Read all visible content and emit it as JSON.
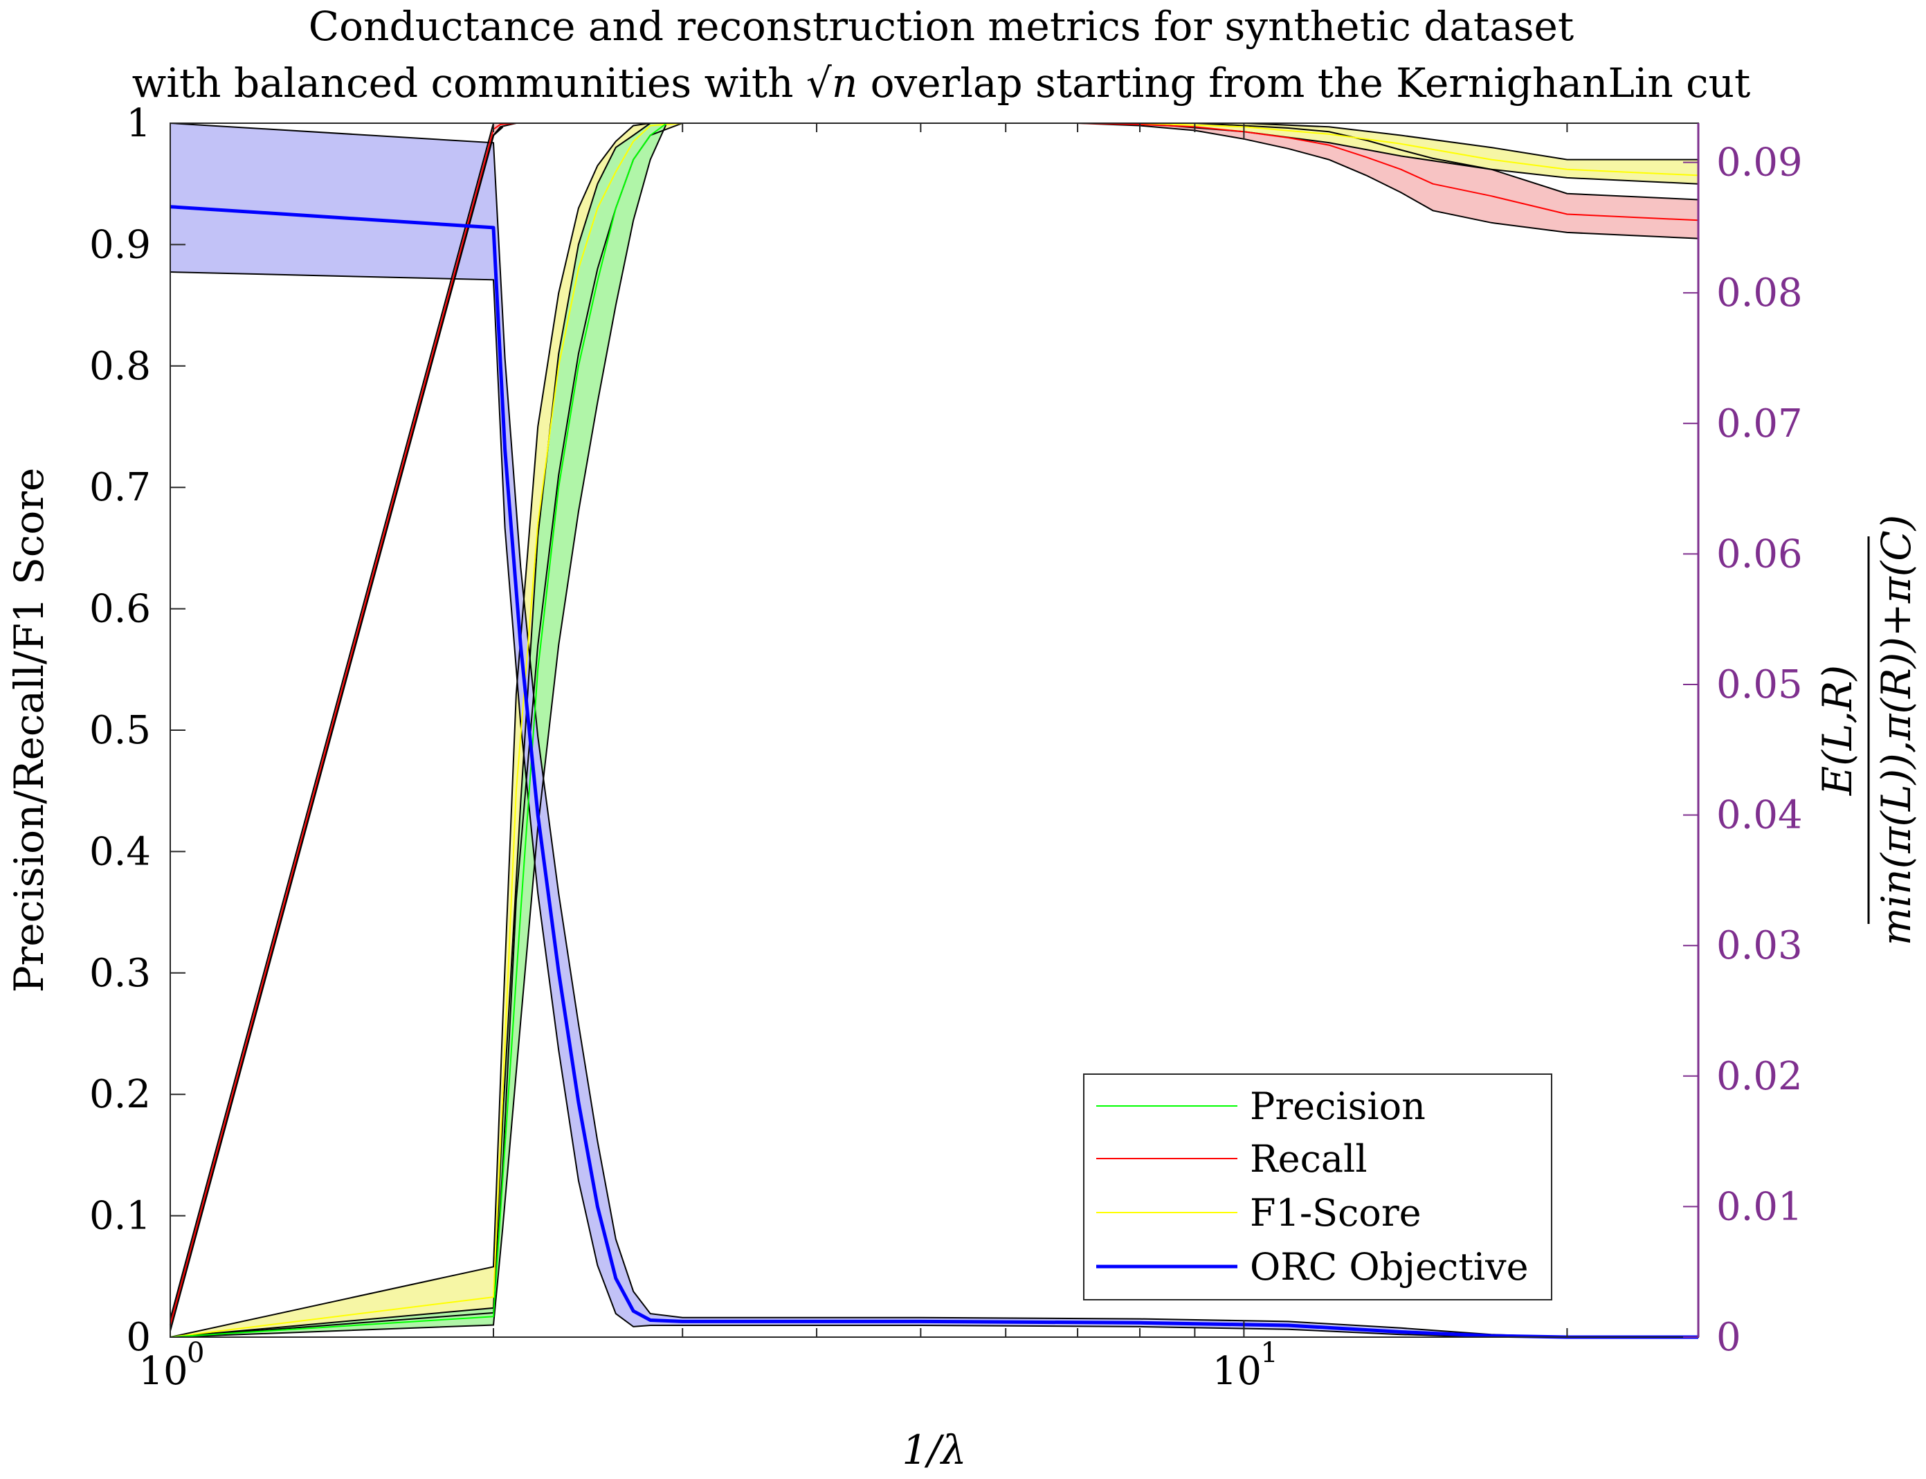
{
  "chart_data": {
    "type": "line",
    "title_lines": [
      "Conductance and reconstruction metrics for synthetic dataset",
      "with balanced communities with √n overlap starting from the KernighanLin cut"
    ],
    "title_math": "√n",
    "xlabel": "1/λ",
    "ylabel": "Precision/Recall/F1 Score",
    "y2label_numerator": "E(L,R)",
    "y2label_denominator": "min(π(L)),π(R))+π(C)",
    "x_scale": "log",
    "xlim": [
      1,
      26.5
    ],
    "ylim": [
      0,
      1
    ],
    "y2lim": [
      0,
      0.093
    ],
    "x_ticklabels": [
      {
        "value": 1,
        "base": "10",
        "exp": "0"
      },
      {
        "value": 10,
        "base": "10",
        "exp": "1"
      }
    ],
    "y_ticks": [
      0,
      0.1,
      0.2,
      0.3,
      0.4,
      0.5,
      0.6,
      0.7,
      0.8,
      0.9,
      1
    ],
    "y_ticklabels": [
      "0",
      "0.1",
      "0.2",
      "0.3",
      "0.4",
      "0.5",
      "0.6",
      "0.7",
      "0.8",
      "0.9",
      "1"
    ],
    "y2_ticks": [
      0,
      0.01,
      0.02,
      0.03,
      0.04,
      0.05,
      0.06,
      0.07,
      0.08,
      0.09
    ],
    "y2_ticklabels": [
      "0",
      "0.01",
      "0.02",
      "0.03",
      "0.04",
      "0.05",
      "0.06",
      "0.07",
      "0.08",
      "0.09"
    ],
    "y2_color": "#7e2f8e",
    "legend_position": "bottom-right",
    "grid": false,
    "series": [
      {
        "name": "Precision",
        "axis": "left",
        "color": "#00ff00",
        "fill": "#b0f5a8",
        "line_width": 2,
        "x": [
          1,
          2,
          2.04,
          2.12,
          2.2,
          2.3,
          2.4,
          2.5,
          2.6,
          2.7,
          2.8,
          2.9,
          3.0,
          3.5,
          4,
          5,
          6,
          7,
          8,
          9,
          10,
          11,
          13,
          15,
          20,
          26.5
        ],
        "y": [
          0,
          0.017,
          0.13,
          0.35,
          0.55,
          0.7,
          0.8,
          0.87,
          0.93,
          0.97,
          0.99,
          1,
          1,
          1,
          1,
          1,
          1,
          1,
          1,
          1,
          1,
          1,
          1,
          1,
          1,
          1
        ],
        "lower": [
          0,
          0.01,
          0.09,
          0.26,
          0.42,
          0.57,
          0.68,
          0.77,
          0.85,
          0.92,
          0.97,
          1,
          1,
          1,
          1,
          1,
          1,
          1,
          1,
          1,
          1,
          1,
          1,
          1,
          1,
          1
        ],
        "upper": [
          0,
          0.024,
          0.18,
          0.44,
          0.66,
          0.81,
          0.9,
          0.95,
          0.98,
          0.99,
          1,
          1,
          1,
          1,
          1,
          1,
          1,
          1,
          1,
          1,
          1,
          1,
          1,
          1,
          1,
          1
        ]
      },
      {
        "name": "Recall",
        "axis": "left",
        "color": "#ff0000",
        "fill": "#f7c3c3",
        "line_width": 2,
        "x": [
          1,
          2,
          2.03,
          2.1,
          3,
          5,
          7,
          8,
          9,
          10,
          11,
          12,
          13,
          14,
          15,
          17,
          20,
          26.5
        ],
        "y": [
          0.01,
          0.995,
          0.999,
          1,
          1,
          1,
          1,
          0.999,
          0.997,
          0.993,
          0.988,
          0.982,
          0.972,
          0.962,
          0.95,
          0.94,
          0.925,
          0.92
        ],
        "lower": [
          0.005,
          0.99,
          0.997,
          1,
          1,
          1,
          1,
          0.998,
          0.994,
          0.987,
          0.979,
          0.97,
          0.957,
          0.943,
          0.928,
          0.918,
          0.91,
          0.905
        ],
        "upper": [
          0.015,
          1,
          1,
          1,
          1,
          1,
          1,
          1,
          1,
          0.998,
          0.996,
          0.993,
          0.986,
          0.978,
          0.971,
          0.962,
          0.942,
          0.937
        ]
      },
      {
        "name": "F1-Score",
        "axis": "left",
        "color": "#ffff00",
        "fill": "#f6f6a5",
        "line_width": 2,
        "x": [
          1,
          2,
          2.04,
          2.1,
          2.2,
          2.3,
          2.4,
          2.5,
          2.6,
          2.7,
          2.8,
          3.0,
          5,
          8,
          10,
          12,
          14,
          17,
          20,
          26.5
        ],
        "y": [
          0,
          0.033,
          0.2,
          0.45,
          0.67,
          0.8,
          0.88,
          0.93,
          0.96,
          0.985,
          0.998,
          1,
          1,
          1,
          0.997,
          0.991,
          0.983,
          0.97,
          0.962,
          0.957
        ],
        "lower": [
          0,
          0.02,
          0.14,
          0.36,
          0.57,
          0.71,
          0.81,
          0.88,
          0.93,
          0.97,
          0.99,
          1,
          1,
          1,
          0.993,
          0.984,
          0.973,
          0.962,
          0.955,
          0.95
        ],
        "upper": [
          0,
          0.058,
          0.26,
          0.53,
          0.75,
          0.86,
          0.93,
          0.965,
          0.985,
          0.998,
          1,
          1,
          1,
          1,
          1,
          0.997,
          0.99,
          0.98,
          0.97,
          0.97
        ]
      },
      {
        "name": "ORC Objective",
        "axis": "right",
        "color": "#0000ff",
        "fill": "#c2c2f7",
        "line_width": 5,
        "x": [
          1,
          2,
          2.05,
          2.12,
          2.2,
          2.3,
          2.4,
          2.5,
          2.6,
          2.7,
          2.8,
          3.0,
          3.5,
          5,
          8,
          11,
          14,
          17,
          20,
          26.5
        ],
        "y": [
          0.0866,
          0.085,
          0.068,
          0.053,
          0.04,
          0.028,
          0.018,
          0.01,
          0.0045,
          0.002,
          0.0013,
          0.0012,
          0.0012,
          0.0012,
          0.0011,
          0.0009,
          0.0004,
          0.0001,
          0,
          0
        ],
        "lower": [
          0.0816,
          0.081,
          0.062,
          0.047,
          0.034,
          0.022,
          0.012,
          0.0055,
          0.0018,
          0.0008,
          0.0009,
          0.0009,
          0.0009,
          0.0009,
          0.0008,
          0.0006,
          0.0002,
          0,
          0,
          0
        ],
        "upper": [
          0.093,
          0.0915,
          0.075,
          0.059,
          0.046,
          0.034,
          0.024,
          0.015,
          0.0075,
          0.0035,
          0.0018,
          0.0015,
          0.0015,
          0.0015,
          0.0014,
          0.0012,
          0.0007,
          0.0002,
          0,
          0
        ]
      }
    ],
    "extra_boundary_line": {
      "x": [
        1,
        2,
        2.04
      ],
      "y": [
        0.01,
        0.99,
        0.997
      ]
    }
  }
}
